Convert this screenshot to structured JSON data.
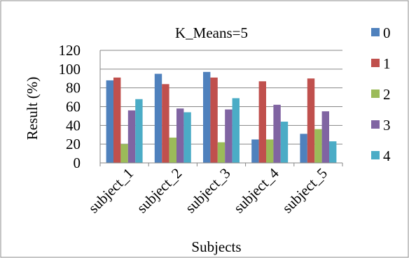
{
  "chart_data": {
    "type": "bar",
    "title": "K_Means=5",
    "xlabel": "Subjects",
    "ylabel": "Result (%)",
    "ylim": [
      0,
      120
    ],
    "yticks": [
      0,
      20,
      40,
      60,
      80,
      100,
      120
    ],
    "grid": true,
    "legend_position": "right",
    "categories": [
      "subject_1",
      "subject_2",
      "subject_3",
      "subject_4",
      "subject_5"
    ],
    "series": [
      {
        "name": "0",
        "color": "#4f81bd",
        "values": [
          88,
          95,
          97,
          25,
          31
        ]
      },
      {
        "name": "1",
        "color": "#c0504d",
        "values": [
          91,
          84,
          91,
          87,
          90
        ]
      },
      {
        "name": "2",
        "color": "#9bbb59",
        "values": [
          20,
          27,
          22,
          25,
          36
        ]
      },
      {
        "name": "3",
        "color": "#8064a2",
        "values": [
          56,
          58,
          57,
          62,
          55
        ]
      },
      {
        "name": "4",
        "color": "#4bacc6",
        "values": [
          68,
          54,
          69,
          44,
          23
        ]
      }
    ]
  }
}
